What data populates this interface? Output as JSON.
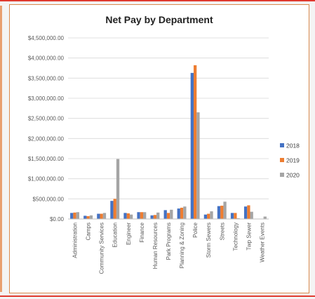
{
  "chart_data": {
    "type": "bar",
    "title": "Net Pay by Department",
    "xlabel": "",
    "ylabel": "",
    "ylim": [
      0,
      4500000
    ],
    "ytick_labels": [
      "$0.00",
      "$500,000.00",
      "$1,000,000.00",
      "$1,500,000.00",
      "$2,000,000.00",
      "$2,500,000.00",
      "$3,000,000.00",
      "$3,500,000.00",
      "$4,000,000.00",
      "$4,500,000.00"
    ],
    "ytick_values": [
      0,
      500000,
      1000000,
      1500000,
      2000000,
      2500000,
      3000000,
      3500000,
      4000000,
      4500000
    ],
    "grid": true,
    "legend_position": "right",
    "categories": [
      "Administration",
      "Camps",
      "Community Services",
      "Education",
      "Engineer",
      "Finance",
      "Human Resources",
      "Park Programs",
      "Planning & Zoning",
      "Police",
      "Storm Sewers",
      "Streets",
      "Technology",
      "Twp Sewer",
      "Weather Events"
    ],
    "series": [
      {
        "name": "2018",
        "color": "#4472c4",
        "values": [
          150000,
          80000,
          130000,
          450000,
          150000,
          170000,
          90000,
          220000,
          260000,
          3630000,
          110000,
          320000,
          150000,
          310000,
          0
        ]
      },
      {
        "name": "2019",
        "color": "#ed7d31",
        "values": [
          160000,
          70000,
          130000,
          500000,
          140000,
          170000,
          100000,
          150000,
          280000,
          3820000,
          130000,
          330000,
          150000,
          340000,
          0
        ]
      },
      {
        "name": "2020",
        "color": "#a5a5a5",
        "values": [
          170000,
          90000,
          150000,
          1490000,
          110000,
          170000,
          160000,
          230000,
          310000,
          2650000,
          190000,
          430000,
          20000,
          180000,
          60000
        ]
      }
    ]
  }
}
